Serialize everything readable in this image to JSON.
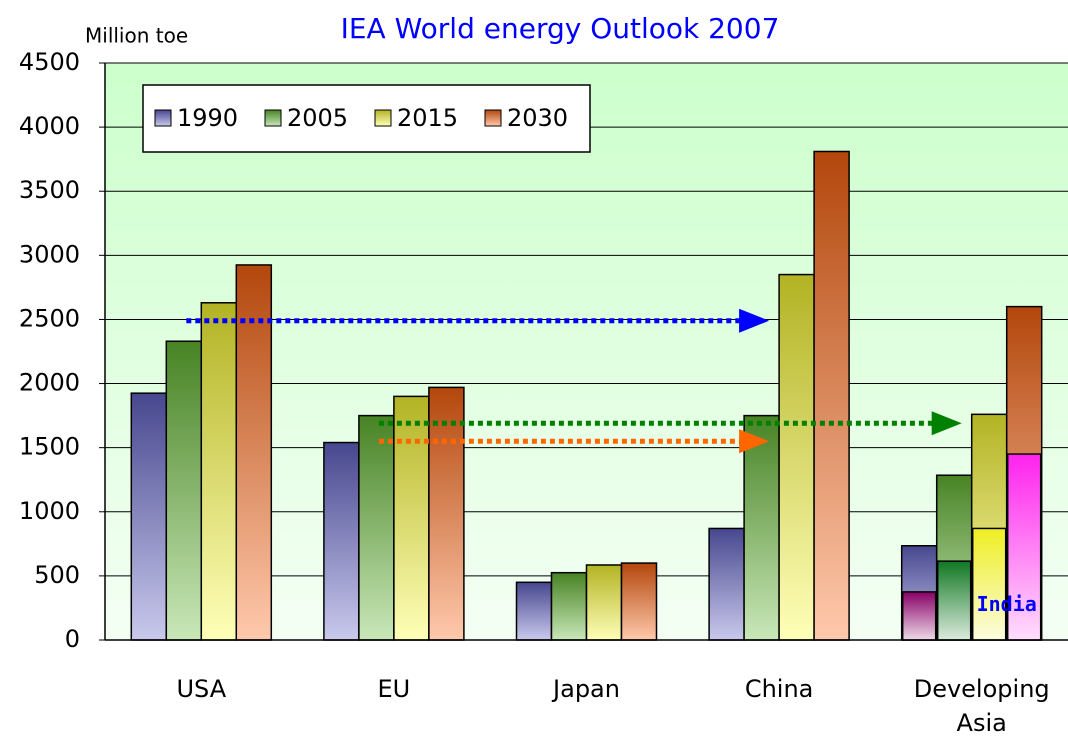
{
  "chart_data": {
    "type": "bar",
    "title": "IEA World energy Outlook 2007",
    "y_label": "Million toe",
    "categories": [
      "USA",
      "EU",
      "Japan",
      "China",
      "Developing Asia"
    ],
    "series": [
      {
        "name": "1990",
        "color": "#6666cc",
        "values": [
          1925,
          1540,
          450,
          870,
          735
        ]
      },
      {
        "name": "2005",
        "color": "#66bb33",
        "values": [
          2330,
          1750,
          525,
          1750,
          1285
        ]
      },
      {
        "name": "2015",
        "color": "#ffff33",
        "values": [
          2630,
          1900,
          585,
          2850,
          1760
        ]
      },
      {
        "name": "2030",
        "color": "#ff6611",
        "values": [
          2925,
          1970,
          600,
          3810,
          2600
        ]
      }
    ],
    "india": {
      "label": "India",
      "colors": [
        "#880066",
        "#117722",
        "#eeee22",
        "#ff22ee"
      ],
      "values": [
        375,
        615,
        870,
        1450
      ]
    },
    "arrows": [
      {
        "y": 2490,
        "from": "USA",
        "to": "China",
        "color": "#0000ff"
      },
      {
        "y": 1550,
        "from": "EU",
        "to": "China",
        "color": "#ff6600"
      },
      {
        "y": 1690,
        "from": "EU",
        "to": "Developing Asia",
        "color": "#008000"
      }
    ],
    "ylim": [
      0,
      4500
    ],
    "yticks": [
      0,
      500,
      1000,
      1500,
      2000,
      2500,
      3000,
      3500,
      4000,
      4500
    ],
    "grid": true,
    "legend": "top-left"
  }
}
